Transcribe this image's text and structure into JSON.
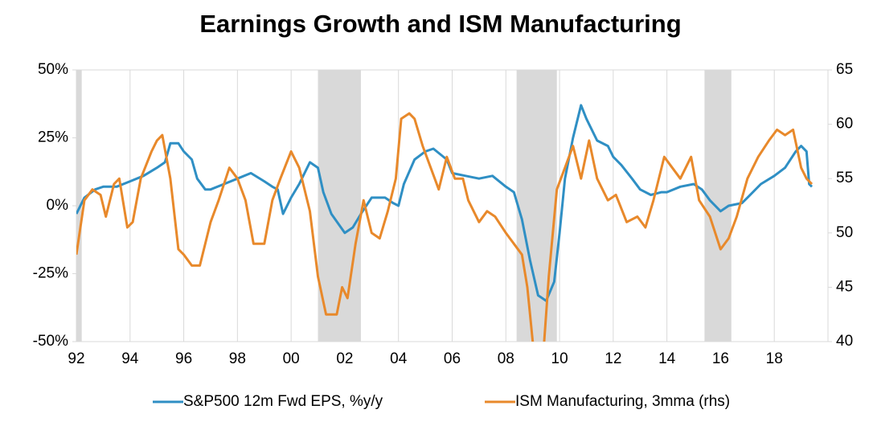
{
  "chart_data": {
    "type": "line",
    "title": "Earnings Growth and ISM Manufacturing",
    "xlim": [
      1992,
      2020
    ],
    "xticks": [
      {
        "value": 1992,
        "label": "92"
      },
      {
        "value": 1994,
        "label": "94"
      },
      {
        "value": 1996,
        "label": "96"
      },
      {
        "value": 1998,
        "label": "98"
      },
      {
        "value": 2000,
        "label": "00"
      },
      {
        "value": 2002,
        "label": "02"
      },
      {
        "value": 2004,
        "label": "04"
      },
      {
        "value": 2006,
        "label": "06"
      },
      {
        "value": 2008,
        "label": "08"
      },
      {
        "value": 2010,
        "label": "10"
      },
      {
        "value": 2012,
        "label": "12"
      },
      {
        "value": 2014,
        "label": "14"
      },
      {
        "value": 2016,
        "label": "16"
      },
      {
        "value": 2018,
        "label": "18"
      }
    ],
    "ylim": [
      -50,
      50
    ],
    "yticks": [
      {
        "value": -50,
        "label": "-50%"
      },
      {
        "value": -25,
        "label": "-25%"
      },
      {
        "value": 0,
        "label": "0%"
      },
      {
        "value": 25,
        "label": "25%"
      },
      {
        "value": 50,
        "label": "50%"
      }
    ],
    "y2lim": [
      40,
      65
    ],
    "y2ticks": [
      40,
      45,
      50,
      55,
      60,
      65
    ],
    "grid": true,
    "legend": "bottom",
    "shaded_periods": [
      [
        1992,
        1992.2
      ],
      [
        2001.0,
        2002.6
      ],
      [
        2008.4,
        2009.9
      ],
      [
        2015.4,
        2016.4
      ]
    ],
    "shade_color": "#d9d9d9",
    "series": [
      {
        "name": "S&P500 12m Fwd EPS, %y/y",
        "color": "#2f8fc4",
        "x": [
          1992.0,
          1992.3,
          1992.7,
          1993.0,
          1993.5,
          1994.0,
          1994.5,
          1995.0,
          1995.3,
          1995.5,
          1995.8,
          1996.0,
          1996.3,
          1996.5,
          1996.8,
          1997.0,
          1997.5,
          1998.0,
          1998.5,
          1999.0,
          1999.3,
          1999.5,
          1999.7,
          2000.0,
          2000.3,
          2000.7,
          2001.0,
          2001.2,
          2001.5,
          2002.0,
          2002.3,
          2002.6,
          2003.0,
          2003.5,
          2003.8,
          2004.0,
          2004.2,
          2004.6,
          2005.0,
          2005.3,
          2005.8,
          2006.0,
          2006.5,
          2007.0,
          2007.5,
          2008.0,
          2008.3,
          2008.6,
          2008.9,
          2009.2,
          2009.5,
          2009.8,
          2010.0,
          2010.2,
          2010.5,
          2010.8,
          2011.0,
          2011.4,
          2011.8,
          2012.0,
          2012.3,
          2012.7,
          2013.0,
          2013.4,
          2013.8,
          2014.0,
          2014.5,
          2015.0,
          2015.3,
          2015.6,
          2016.0,
          2016.3,
          2016.8,
          2017.0,
          2017.5,
          2018.0,
          2018.4,
          2018.8,
          2019.0,
          2019.2,
          2019.3,
          2019.4
        ],
        "values": [
          -3,
          3,
          6,
          7,
          7,
          9,
          11,
          14,
          16,
          23,
          23,
          20,
          17,
          10,
          6,
          6,
          8,
          10,
          12,
          9,
          7,
          6,
          -3,
          3,
          8,
          16,
          14,
          5,
          -3,
          -10,
          -8,
          -3,
          3,
          3,
          1,
          0,
          8,
          17,
          20,
          21,
          17,
          12,
          11,
          10,
          11,
          7,
          5,
          -5,
          -20,
          -33,
          -35,
          -28,
          -10,
          10,
          25,
          37,
          32,
          24,
          22,
          18,
          15,
          10,
          6,
          4,
          5,
          5,
          7,
          8,
          6,
          2,
          -2,
          0,
          1,
          3,
          8,
          11,
          14,
          20,
          22,
          20,
          8,
          7
        ]
      },
      {
        "name": "ISM Manufacturing, 3mma (rhs)",
        "color": "#e8892b",
        "axis": "y2",
        "x": [
          1992.0,
          1992.3,
          1992.6,
          1992.9,
          1993.1,
          1993.4,
          1993.6,
          1993.9,
          1994.1,
          1994.4,
          1994.8,
          1995.0,
          1995.2,
          1995.5,
          1995.8,
          1996.0,
          1996.3,
          1996.6,
          1997.0,
          1997.3,
          1997.7,
          1998.0,
          1998.3,
          1998.6,
          1999.0,
          1999.3,
          1999.6,
          2000.0,
          2000.3,
          2000.7,
          2001.0,
          2001.3,
          2001.7,
          2001.9,
          2002.1,
          2002.4,
          2002.7,
          2003.0,
          2003.3,
          2003.6,
          2003.9,
          2004.1,
          2004.4,
          2004.6,
          2004.9,
          2005.2,
          2005.5,
          2005.8,
          2006.1,
          2006.4,
          2006.6,
          2007.0,
          2007.3,
          2007.6,
          2008.0,
          2008.3,
          2008.6,
          2008.8,
          2009.0,
          2009.2,
          2009.4,
          2009.6,
          2009.9,
          2010.2,
          2010.5,
          2010.8,
          2011.1,
          2011.4,
          2011.8,
          2012.1,
          2012.5,
          2012.9,
          2013.2,
          2013.5,
          2013.9,
          2014.2,
          2014.5,
          2014.9,
          2015.2,
          2015.6,
          2016.0,
          2016.3,
          2016.6,
          2017.0,
          2017.4,
          2017.8,
          2018.1,
          2018.4,
          2018.7,
          2019.0,
          2019.2,
          2019.4
        ],
        "values": [
          48,
          53,
          54,
          53.5,
          51.5,
          54.5,
          55,
          50.5,
          51,
          55,
          57.5,
          58.5,
          59,
          55,
          48.5,
          48,
          47,
          47,
          51,
          53,
          56,
          55,
          53,
          49,
          49,
          53,
          55,
          57.5,
          56,
          52,
          46,
          42.5,
          42.5,
          45,
          44,
          49,
          53,
          50,
          49.5,
          52,
          55,
          60.5,
          61,
          60.5,
          58,
          56,
          54,
          57,
          55,
          55,
          53,
          51,
          52,
          51.5,
          50,
          49,
          48,
          45,
          40,
          37,
          39,
          46,
          54,
          56,
          58,
          55,
          58.5,
          55,
          53,
          53.5,
          51,
          51.5,
          50.5,
          53,
          57,
          56,
          55,
          57,
          53,
          51.5,
          48.5,
          49.5,
          51.5,
          55,
          57,
          58.5,
          59.5,
          59,
          59.5,
          56,
          55,
          54.5
        ]
      }
    ]
  }
}
